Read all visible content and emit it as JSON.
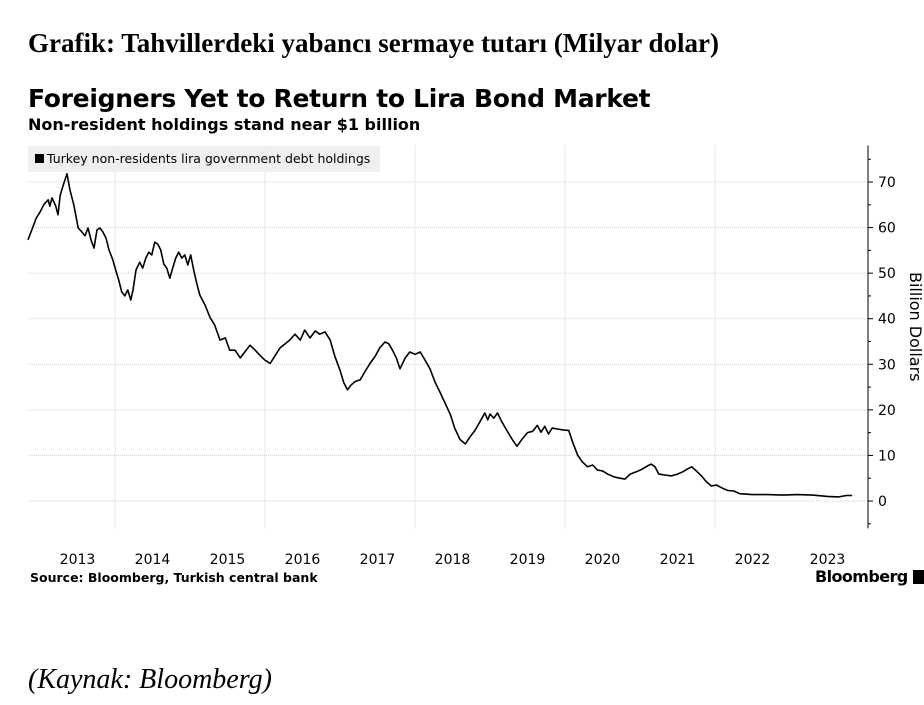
{
  "heading": "Grafik: Tahvillerdeki yabancı sermaye tutarı (Milyar dolar)",
  "footer": "(Kaynak: Bloomberg)",
  "chart_data": {
    "type": "line",
    "title": "Foreigners Yet to Return to Lira Bond Market",
    "subtitle": "Non-resident holdings stand near $1 billion",
    "xlabel": "",
    "ylabel": "Billion Dollars",
    "y_axis_side": "right",
    "ylim": [
      -6,
      78
    ],
    "xlim": [
      2012.84,
      2024.0
    ],
    "yticks": [
      0,
      10,
      20,
      30,
      40,
      50,
      60,
      70
    ],
    "xtick_labels": [
      "2013",
      "2014",
      "2015",
      "2016",
      "2017",
      "2018",
      "2019",
      "2020",
      "2021",
      "2022",
      "2023"
    ],
    "grid": true,
    "legend": {
      "placement": "top-left",
      "entries": [
        "Turkey non-residents lira government debt holdings"
      ]
    },
    "source": "Source: Bloomberg, Turkish central bank",
    "brand": "Bloomberg",
    "colors": {
      "line": "#000000",
      "grid": "#d0d0d0",
      "legend_bg": "#efefef"
    },
    "series": [
      {
        "name": "Turkey non-residents lira government debt holdings",
        "points": [
          [
            2012.84,
            57.3
          ],
          [
            2012.89,
            59.5
          ],
          [
            2012.95,
            62.1
          ],
          [
            2013.0,
            63.4
          ],
          [
            2013.05,
            65.0
          ],
          [
            2013.11,
            66.1
          ],
          [
            2013.13,
            64.7
          ],
          [
            2013.16,
            66.5
          ],
          [
            2013.21,
            64.7
          ],
          [
            2013.24,
            62.8
          ],
          [
            2013.27,
            67.1
          ],
          [
            2013.31,
            69.3
          ],
          [
            2013.36,
            71.8
          ],
          [
            2013.4,
            68.2
          ],
          [
            2013.45,
            65.0
          ],
          [
            2013.51,
            59.9
          ],
          [
            2013.56,
            59.0
          ],
          [
            2013.6,
            58.2
          ],
          [
            2013.64,
            59.9
          ],
          [
            2013.68,
            57.3
          ],
          [
            2013.72,
            55.5
          ],
          [
            2013.76,
            59.5
          ],
          [
            2013.8,
            59.9
          ],
          [
            2013.84,
            59.0
          ],
          [
            2013.88,
            57.7
          ],
          [
            2013.92,
            55.1
          ],
          [
            2013.97,
            52.9
          ],
          [
            2014.01,
            50.7
          ],
          [
            2014.05,
            48.5
          ],
          [
            2014.09,
            45.9
          ],
          [
            2014.13,
            45.0
          ],
          [
            2014.17,
            46.3
          ],
          [
            2014.21,
            44.1
          ],
          [
            2014.24,
            46.3
          ],
          [
            2014.28,
            50.7
          ],
          [
            2014.33,
            52.4
          ],
          [
            2014.37,
            51.1
          ],
          [
            2014.41,
            53.3
          ],
          [
            2014.45,
            54.6
          ],
          [
            2014.49,
            54.0
          ],
          [
            2014.53,
            56.8
          ],
          [
            2014.57,
            56.4
          ],
          [
            2014.61,
            55.1
          ],
          [
            2014.65,
            52.0
          ],
          [
            2014.69,
            51.1
          ],
          [
            2014.73,
            48.9
          ],
          [
            2014.77,
            51.1
          ],
          [
            2014.81,
            53.3
          ],
          [
            2014.85,
            54.6
          ],
          [
            2014.89,
            53.3
          ],
          [
            2014.93,
            54.0
          ],
          [
            2014.97,
            51.8
          ],
          [
            2015.01,
            54.0
          ],
          [
            2015.05,
            50.7
          ],
          [
            2015.09,
            47.8
          ],
          [
            2015.13,
            45.2
          ],
          [
            2015.2,
            43.0
          ],
          [
            2015.27,
            40.2
          ],
          [
            2015.33,
            38.6
          ],
          [
            2015.4,
            35.3
          ],
          [
            2015.47,
            35.8
          ],
          [
            2015.53,
            33.1
          ],
          [
            2015.6,
            33.1
          ],
          [
            2015.67,
            31.4
          ],
          [
            2015.73,
            32.7
          ],
          [
            2015.8,
            34.2
          ],
          [
            2015.87,
            33.1
          ],
          [
            2015.93,
            32.0
          ],
          [
            2016.0,
            30.9
          ],
          [
            2016.07,
            30.2
          ],
          [
            2016.13,
            31.8
          ],
          [
            2016.2,
            33.6
          ],
          [
            2016.27,
            34.5
          ],
          [
            2016.33,
            35.3
          ],
          [
            2016.4,
            36.6
          ],
          [
            2016.47,
            35.3
          ],
          [
            2016.53,
            37.5
          ],
          [
            2016.6,
            35.8
          ],
          [
            2016.67,
            37.3
          ],
          [
            2016.73,
            36.6
          ],
          [
            2016.8,
            37.1
          ],
          [
            2016.87,
            35.3
          ],
          [
            2016.93,
            31.8
          ],
          [
            2017.0,
            28.7
          ],
          [
            2017.05,
            26.0
          ],
          [
            2017.1,
            24.4
          ],
          [
            2017.15,
            25.5
          ],
          [
            2017.2,
            26.2
          ],
          [
            2017.27,
            26.6
          ],
          [
            2017.33,
            28.3
          ],
          [
            2017.4,
            30.2
          ],
          [
            2017.47,
            31.8
          ],
          [
            2017.53,
            33.6
          ],
          [
            2017.6,
            34.9
          ],
          [
            2017.65,
            34.5
          ],
          [
            2017.7,
            33.1
          ],
          [
            2017.75,
            31.4
          ],
          [
            2017.8,
            29.0
          ],
          [
            2017.87,
            31.4
          ],
          [
            2017.93,
            32.7
          ],
          [
            2018.0,
            32.2
          ],
          [
            2018.07,
            32.7
          ],
          [
            2018.13,
            31.0
          ],
          [
            2018.2,
            29.0
          ],
          [
            2018.27,
            26.0
          ],
          [
            2018.33,
            24.0
          ],
          [
            2018.4,
            21.5
          ],
          [
            2018.47,
            19.0
          ],
          [
            2018.53,
            16.0
          ],
          [
            2018.6,
            13.5
          ],
          [
            2018.67,
            12.5
          ],
          [
            2018.73,
            14.0
          ],
          [
            2018.8,
            15.5
          ],
          [
            2018.87,
            17.5
          ],
          [
            2018.93,
            19.3
          ],
          [
            2018.97,
            17.8
          ],
          [
            2019.0,
            19.1
          ],
          [
            2019.05,
            18.2
          ],
          [
            2019.1,
            19.3
          ],
          [
            2019.15,
            17.6
          ],
          [
            2019.22,
            15.6
          ],
          [
            2019.3,
            13.4
          ],
          [
            2019.36,
            12.0
          ],
          [
            2019.42,
            13.4
          ],
          [
            2019.5,
            15.0
          ],
          [
            2019.57,
            15.3
          ],
          [
            2019.63,
            16.6
          ],
          [
            2019.68,
            15.1
          ],
          [
            2019.73,
            16.4
          ],
          [
            2019.78,
            14.7
          ],
          [
            2019.83,
            16.0
          ],
          [
            2019.9,
            15.8
          ],
          [
            2019.97,
            15.6
          ],
          [
            2020.05,
            15.5
          ],
          [
            2020.1,
            13.0
          ],
          [
            2020.17,
            10.0
          ],
          [
            2020.23,
            8.6
          ],
          [
            2020.3,
            7.5
          ],
          [
            2020.37,
            7.9
          ],
          [
            2020.43,
            6.8
          ],
          [
            2020.5,
            6.6
          ],
          [
            2020.57,
            5.9
          ],
          [
            2020.65,
            5.3
          ],
          [
            2020.73,
            5.0
          ],
          [
            2020.8,
            4.8
          ],
          [
            2020.87,
            5.9
          ],
          [
            2020.95,
            6.4
          ],
          [
            2021.03,
            7.0
          ],
          [
            2021.1,
            7.7
          ],
          [
            2021.15,
            8.1
          ],
          [
            2021.2,
            7.5
          ],
          [
            2021.25,
            5.9
          ],
          [
            2021.33,
            5.7
          ],
          [
            2021.42,
            5.5
          ],
          [
            2021.5,
            5.9
          ],
          [
            2021.57,
            6.4
          ],
          [
            2021.63,
            7.0
          ],
          [
            2021.69,
            7.5
          ],
          [
            2021.75,
            6.6
          ],
          [
            2021.82,
            5.5
          ],
          [
            2021.88,
            4.3
          ],
          [
            2021.95,
            3.3
          ],
          [
            2022.02,
            3.5
          ],
          [
            2022.1,
            2.8
          ],
          [
            2022.17,
            2.3
          ],
          [
            2022.25,
            2.2
          ],
          [
            2022.33,
            1.6
          ],
          [
            2022.5,
            1.4
          ],
          [
            2022.7,
            1.4
          ],
          [
            2022.9,
            1.3
          ],
          [
            2023.1,
            1.4
          ],
          [
            2023.3,
            1.3
          ],
          [
            2023.5,
            1.0
          ],
          [
            2023.65,
            0.9
          ],
          [
            2023.75,
            1.2
          ],
          [
            2023.83,
            1.2
          ]
        ]
      }
    ]
  }
}
